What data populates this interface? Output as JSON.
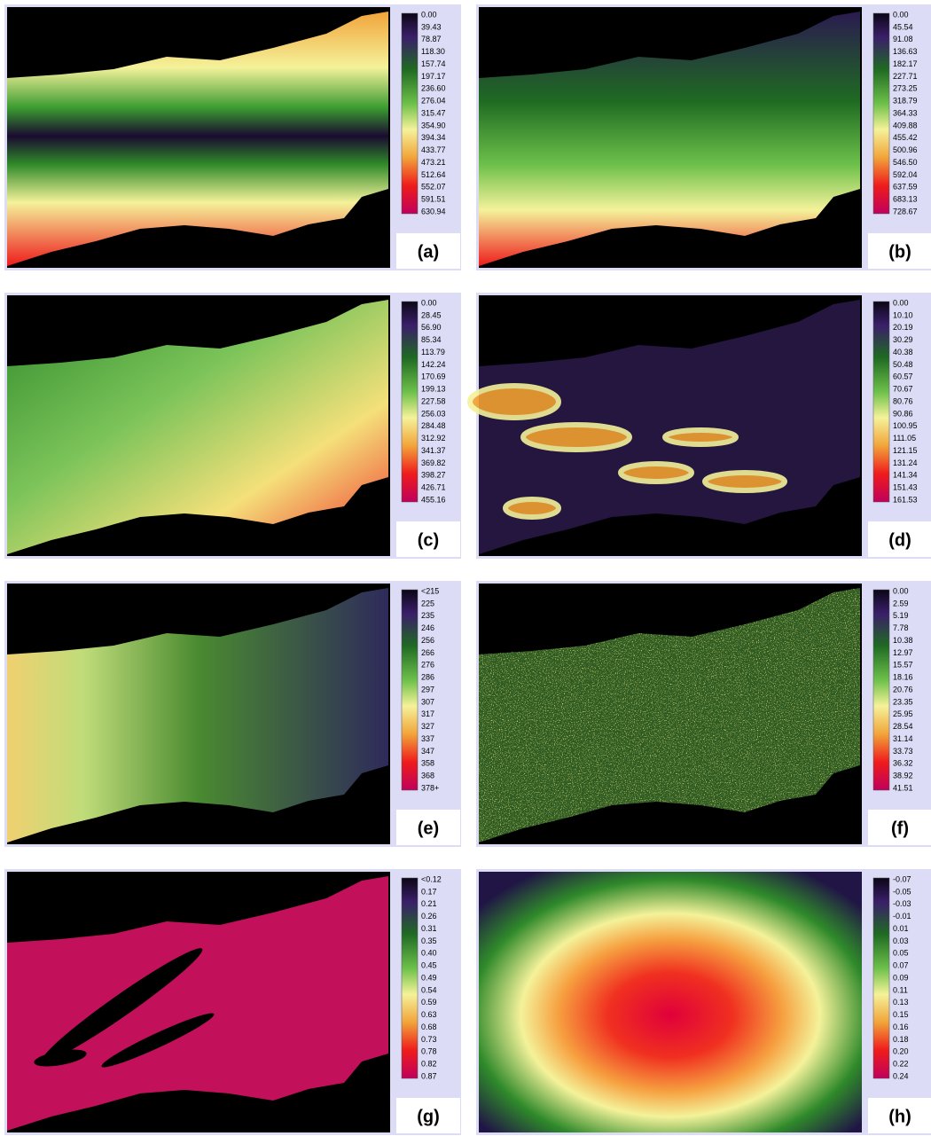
{
  "panels": [
    {
      "label": "(a)",
      "legend": [
        "0.00",
        "39.43",
        "78.87",
        "118.30",
        "157.74",
        "197.17",
        "236.60",
        "276.04",
        "315.47",
        "354.90",
        "394.34",
        "433.77",
        "473.21",
        "512.64",
        "552.07",
        "591.51",
        "630.94"
      ]
    },
    {
      "label": "(b)",
      "legend": [
        "0.00",
        "45.54",
        "91.08",
        "136.63",
        "182.17",
        "227.71",
        "273.25",
        "318.79",
        "364.33",
        "409.88",
        "455.42",
        "500.96",
        "546.50",
        "592.04",
        "637.59",
        "683.13",
        "728.67"
      ]
    },
    {
      "label": "(c)",
      "legend": [
        "0.00",
        "28.45",
        "56.90",
        "85.34",
        "113.79",
        "142.24",
        "170.69",
        "199.13",
        "227.58",
        "256.03",
        "284.48",
        "312.92",
        "341.37",
        "369.82",
        "398.27",
        "426.71",
        "455.16"
      ]
    },
    {
      "label": "(d)",
      "legend": [
        "0.00",
        "10.10",
        "20.19",
        "30.29",
        "40.38",
        "50.48",
        "60.57",
        "70.67",
        "80.76",
        "90.86",
        "100.95",
        "111.05",
        "121.15",
        "131.24",
        "141.34",
        "151.43",
        "161.53"
      ]
    },
    {
      "label": "(e)",
      "legend": [
        "<215",
        "225",
        "235",
        "246",
        "256",
        "266",
        "276",
        "286",
        "297",
        "307",
        "317",
        "327",
        "337",
        "347",
        "358",
        "368",
        "378+"
      ]
    },
    {
      "label": "(f)",
      "legend": [
        "0.00",
        "2.59",
        "5.19",
        "7.78",
        "10.38",
        "12.97",
        "15.57",
        "18.16",
        "20.76",
        "23.35",
        "25.95",
        "28.54",
        "31.14",
        "33.73",
        "36.32",
        "38.92",
        "41.51"
      ]
    },
    {
      "label": "(g)",
      "legend": [
        "<0.12",
        "0.17",
        "0.21",
        "0.26",
        "0.31",
        "0.35",
        "0.40",
        "0.45",
        "0.49",
        "0.54",
        "0.59",
        "0.63",
        "0.68",
        "0.73",
        "0.78",
        "0.82",
        "0.87"
      ]
    },
    {
      "label": "(h)",
      "legend": [
        "-0.07",
        "-0.05",
        "-0.03",
        "-0.01",
        "0.01",
        "0.03",
        "0.05",
        "0.07",
        "0.09",
        "0.11",
        "0.13",
        "0.15",
        "0.16",
        "0.18",
        "0.20",
        "0.22",
        "0.24"
      ]
    }
  ]
}
